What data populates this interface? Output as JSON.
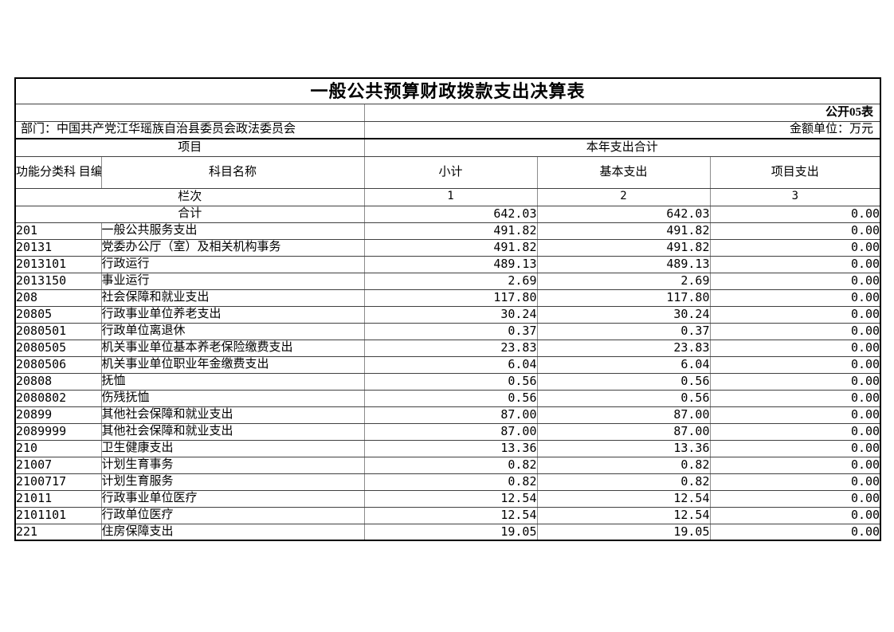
{
  "page": {
    "title": "一般公共预算财政拨款支出决算表",
    "table_label": "公开05表",
    "department": "部门：中国共产党江华瑶族自治县委员会政法委员会",
    "unit_label": "金额单位：万元"
  },
  "header": {
    "project_group": "项目",
    "year_total_group": "本年支出合计",
    "code": "功能分类科\n目编码",
    "subject_name": "科目名称",
    "subtotal": "小计",
    "basic_expenditure": "基本支出",
    "project_expenditure": "项目支出",
    "column_index_label": "栏次",
    "column_indexes": [
      "1",
      "2",
      "3"
    ]
  },
  "total_row": {
    "label": "合计",
    "subtotal": "642.03",
    "basic": "642.03",
    "project": "0.00"
  },
  "rows": [
    {
      "code": "201",
      "name": "一般公共服务支出",
      "subtotal": "491.82",
      "basic": "491.82",
      "project": "0.00"
    },
    {
      "code": "20131",
      "name": "党委办公厅（室）及相关机构事务",
      "subtotal": "491.82",
      "basic": "491.82",
      "project": "0.00"
    },
    {
      "code": "2013101",
      "name": "行政运行",
      "subtotal": "489.13",
      "basic": "489.13",
      "project": "0.00"
    },
    {
      "code": "2013150",
      "name": "事业运行",
      "subtotal": "2.69",
      "basic": "2.69",
      "project": "0.00"
    },
    {
      "code": "208",
      "name": "社会保障和就业支出",
      "subtotal": "117.80",
      "basic": "117.80",
      "project": "0.00"
    },
    {
      "code": "20805",
      "name": "行政事业单位养老支出",
      "subtotal": "30.24",
      "basic": "30.24",
      "project": "0.00"
    },
    {
      "code": "2080501",
      "name": "行政单位离退休",
      "subtotal": "0.37",
      "basic": "0.37",
      "project": "0.00"
    },
    {
      "code": "2080505",
      "name": "机关事业单位基本养老保险缴费支出",
      "subtotal": "23.83",
      "basic": "23.83",
      "project": "0.00"
    },
    {
      "code": "2080506",
      "name": "机关事业单位职业年金缴费支出",
      "subtotal": "6.04",
      "basic": "6.04",
      "project": "0.00"
    },
    {
      "code": "20808",
      "name": "抚恤",
      "subtotal": "0.56",
      "basic": "0.56",
      "project": "0.00"
    },
    {
      "code": "2080802",
      "name": "伤残抚恤",
      "subtotal": "0.56",
      "basic": "0.56",
      "project": "0.00"
    },
    {
      "code": "20899",
      "name": "其他社会保障和就业支出",
      "subtotal": "87.00",
      "basic": "87.00",
      "project": "0.00"
    },
    {
      "code": "2089999",
      "name": "其他社会保障和就业支出",
      "subtotal": "87.00",
      "basic": "87.00",
      "project": "0.00"
    },
    {
      "code": "210",
      "name": "卫生健康支出",
      "subtotal": "13.36",
      "basic": "13.36",
      "project": "0.00"
    },
    {
      "code": "21007",
      "name": "计划生育事务",
      "subtotal": "0.82",
      "basic": "0.82",
      "project": "0.00"
    },
    {
      "code": "2100717",
      "name": "计划生育服务",
      "subtotal": "0.82",
      "basic": "0.82",
      "project": "0.00"
    },
    {
      "code": "21011",
      "name": "行政事业单位医疗",
      "subtotal": "12.54",
      "basic": "12.54",
      "project": "0.00"
    },
    {
      "code": "2101101",
      "name": "行政单位医疗",
      "subtotal": "12.54",
      "basic": "12.54",
      "project": "0.00"
    },
    {
      "code": "221",
      "name": "住房保障支出",
      "subtotal": "19.05",
      "basic": "19.05",
      "project": "0.00"
    }
  ]
}
